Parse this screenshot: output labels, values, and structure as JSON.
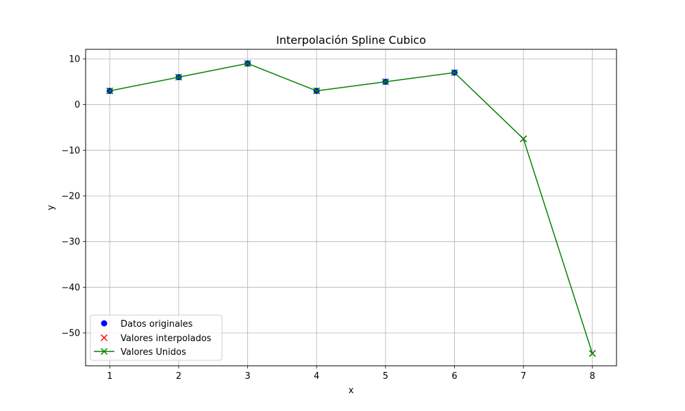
{
  "chart_data": {
    "type": "line",
    "title": "Interpolación Spline Cubico",
    "xlabel": "x",
    "ylabel": "y",
    "xlim": [
      0.65,
      8.35
    ],
    "ylim": [
      -57.2,
      12.1
    ],
    "xticks": [
      1,
      2,
      3,
      4,
      5,
      6,
      7,
      8
    ],
    "yticks": [
      10,
      0,
      -10,
      -20,
      -30,
      -40,
      -50
    ],
    "ytick_labels": [
      "10",
      "0",
      "−10",
      "−20",
      "−30",
      "−40",
      "−50"
    ],
    "grid": true,
    "legend_position": "lower-left",
    "series": [
      {
        "name": "Datos originales",
        "style": "marker",
        "marker": "circle",
        "color": "#0000ff",
        "x": [
          1,
          2,
          3,
          4,
          5,
          6
        ],
        "y": [
          3,
          6,
          9,
          3,
          5,
          7
        ]
      },
      {
        "name": "Valores interpolados",
        "style": "marker",
        "marker": "x",
        "color": "#ff0000",
        "x": [
          7,
          8
        ],
        "y": [
          -7.5,
          -54.5
        ]
      },
      {
        "name": "Valores Unidos",
        "style": "line",
        "marker": "x",
        "color": "#008000",
        "x": [
          1,
          2,
          3,
          4,
          5,
          6,
          7,
          8
        ],
        "y": [
          3,
          6,
          9,
          3,
          5,
          7,
          -7.5,
          -54.5
        ]
      }
    ]
  }
}
